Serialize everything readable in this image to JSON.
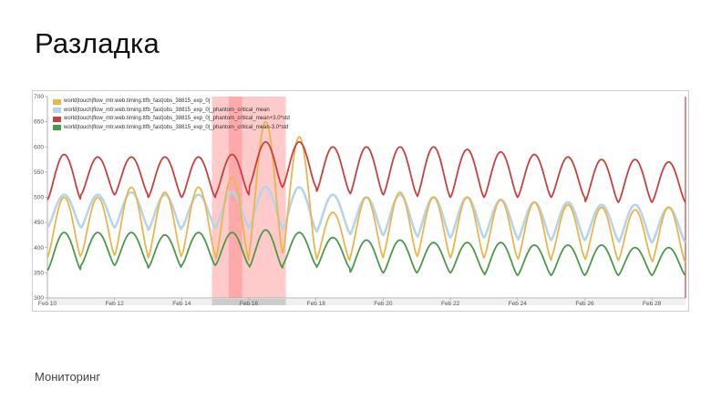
{
  "slide": {
    "title": "Разладка",
    "footer": "Мониторинг"
  },
  "colors": {
    "ttfb": "#e8b64c",
    "mean": "#b8d4ea",
    "upper": "#c9403f",
    "lower": "#4a9a4a",
    "anomaly": "#ff8a8a"
  },
  "chart_data": {
    "type": "line",
    "title": "",
    "xlabel": "",
    "ylabel": "",
    "ylim": [
      300,
      700
    ],
    "yticks": [
      300,
      350,
      400,
      450,
      500,
      550,
      600,
      650,
      700
    ],
    "x_start": "Feb 10",
    "x_end": "Mar 1",
    "x_days": 19,
    "xticks": [
      {
        "day": 0,
        "label": "Feb 10"
      },
      {
        "day": 2,
        "label": "Feb 12"
      },
      {
        "day": 4,
        "label": "Feb 14"
      },
      {
        "day": 6,
        "label": "Feb 16"
      },
      {
        "day": 8,
        "label": "Feb 18"
      },
      {
        "day": 10,
        "label": "Feb 20"
      },
      {
        "day": 12,
        "label": "Feb 22"
      },
      {
        "day": 14,
        "label": "Feb 24"
      },
      {
        "day": 16,
        "label": "Feb 26"
      },
      {
        "day": 18,
        "label": "Feb 28"
      }
    ],
    "legend_position": "top-left",
    "grid": false,
    "anomaly_region": {
      "from": "Feb 15 (day 4.9)",
      "to": "Feb 17 (day 7.1)",
      "from_day": 4.9,
      "to_day": 7.1
    },
    "series": [
      {
        "name": "world|touch|flow_mtr.web.timing.ttfb_fast|obs_38815_exp_0|",
        "color_key": "ttfb",
        "daily_min": [
          380,
          385,
          385,
          380,
          385,
          375,
          390,
          385,
          375,
          380,
          385,
          380,
          380,
          380,
          375,
          380,
          375,
          375,
          370,
          375
        ],
        "daily_max": [
          500,
          500,
          520,
          510,
          520,
          540,
          650,
          620,
          470,
          500,
          510,
          500,
          500,
          495,
          490,
          485,
          480,
          475,
          480,
          480
        ]
      },
      {
        "name": "world|touch|flow_mtr.web.timing.ttfb_fast|obs_38815_exp_0|_phantom_critical_mean",
        "color_key": "mean",
        "daily_min": [
          440,
          440,
          440,
          435,
          440,
          440,
          440,
          435,
          430,
          425,
          425,
          420,
          420,
          420,
          415,
          415,
          415,
          410,
          410,
          410
        ],
        "daily_max": [
          505,
          505,
          510,
          505,
          505,
          510,
          520,
          520,
          505,
          500,
          505,
          500,
          500,
          495,
          490,
          490,
          485,
          485,
          480,
          480
        ]
      },
      {
        "name": "world|touch|flow_mtr.web.timing.ttfb_fast|obs_38815_exp_0|_phantom_critical_mean+3.0*std",
        "color_key": "upper",
        "daily_min": [
          495,
          505,
          505,
          500,
          500,
          505,
          520,
          520,
          510,
          505,
          505,
          500,
          500,
          500,
          500,
          500,
          490,
          490,
          490,
          490
        ],
        "daily_max": [
          585,
          580,
          580,
          580,
          580,
          585,
          610,
          610,
          600,
          600,
          600,
          600,
          595,
          590,
          585,
          580,
          575,
          575,
          570,
          570
        ]
      },
      {
        "name": "world|touch|flow_mtr.web.timing.ttfb_fast|obs_38815_exp_0|_phantom_critical_mean-3.0*std",
        "color_key": "lower",
        "daily_min": [
          355,
          365,
          365,
          360,
          365,
          365,
          360,
          365,
          360,
          350,
          350,
          350,
          350,
          345,
          345,
          345,
          345,
          345,
          345,
          345
        ],
        "daily_max": [
          430,
          430,
          430,
          425,
          430,
          430,
          435,
          430,
          420,
          415,
          415,
          410,
          410,
          410,
          405,
          405,
          405,
          400,
          400,
          400
        ]
      }
    ]
  }
}
